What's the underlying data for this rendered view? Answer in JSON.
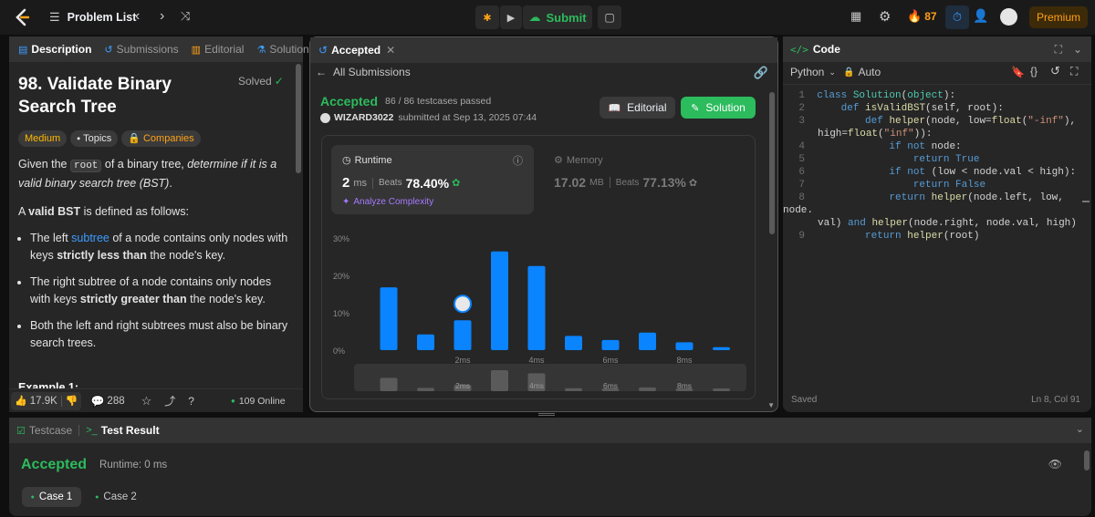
{
  "topbar": {
    "problem_list": "Problem List",
    "submit": "Submit",
    "streak": "87",
    "premium": "Premium"
  },
  "desc": {
    "tabs": [
      "Description",
      "Submissions",
      "Editorial",
      "Solutions"
    ],
    "title": "98. Validate Binary Search Tree",
    "solved": "Solved",
    "difficulty": "Medium",
    "topics": "Topics",
    "companies": "Companies",
    "p1_a": "Given the",
    "p1_code": "root",
    "p1_b": "of a binary tree,",
    "p1_em": "determine if it is a valid binary search tree (BST)",
    "p1_end": ".",
    "p2_a": "A",
    "p2_b": "valid BST",
    "p2_c": "is defined as follows:",
    "b1_a": "The left",
    "b1_link": "subtree",
    "b1_b": "of a node contains only nodes with keys",
    "b1_bold": "strictly less than",
    "b1_c": "the node's key.",
    "b2_a": "The right subtree of a node contains only nodes with keys",
    "b2_bold": "strictly greater than",
    "b2_c": "the node's key.",
    "b3": "Both the left and right subtrees must also be binary search trees.",
    "example": "Example 1:",
    "likes": "17.9K",
    "comments": "288",
    "online": "109 Online"
  },
  "mid": {
    "tab": "Accepted",
    "all_submissions": "All Submissions",
    "status": "Accepted",
    "testcases": "86 / 86 testcases passed",
    "user": "WIZARD3022",
    "submitted": "submitted at Sep 13, 2025 07:44",
    "editorial_btn": "Editorial",
    "solution_btn": "Solution",
    "runtime_label": "Runtime",
    "runtime_value": "2",
    "runtime_unit": "ms",
    "beats": "Beats",
    "runtime_beats": "78.40%",
    "analyze": "Analyze Complexity",
    "memory_label": "Memory",
    "memory_value": "17.02",
    "memory_unit": "MB",
    "memory_beats": "77.13%"
  },
  "chart_data": {
    "type": "bar",
    "yticks": [
      "30%",
      "20%",
      "10%",
      "0%"
    ],
    "ylim": [
      0,
      30
    ],
    "xlabels": [
      "2ms",
      "4ms",
      "6ms",
      "8ms"
    ],
    "values": [
      16.8,
      4.2,
      8.0,
      26.4,
      22.5,
      3.8,
      2.7,
      4.7,
      2.1,
      0.8
    ],
    "highlight_index": 2,
    "bar_color": "#0a84ff",
    "mini_values": [
      16.8,
      4.2,
      8.0,
      26.4,
      22.5,
      3.8,
      2.7,
      4.7,
      2.1,
      0.8
    ]
  },
  "code": {
    "title": "Code",
    "lang": "Python",
    "auto": "Auto",
    "saved": "Saved",
    "cursor": "Ln 8, Col 91"
  },
  "bottom": {
    "testcase": "Testcase",
    "test_result": "Test Result",
    "accepted": "Accepted",
    "runtime": "Runtime: 0 ms",
    "case1": "Case 1",
    "case2": "Case 2"
  }
}
